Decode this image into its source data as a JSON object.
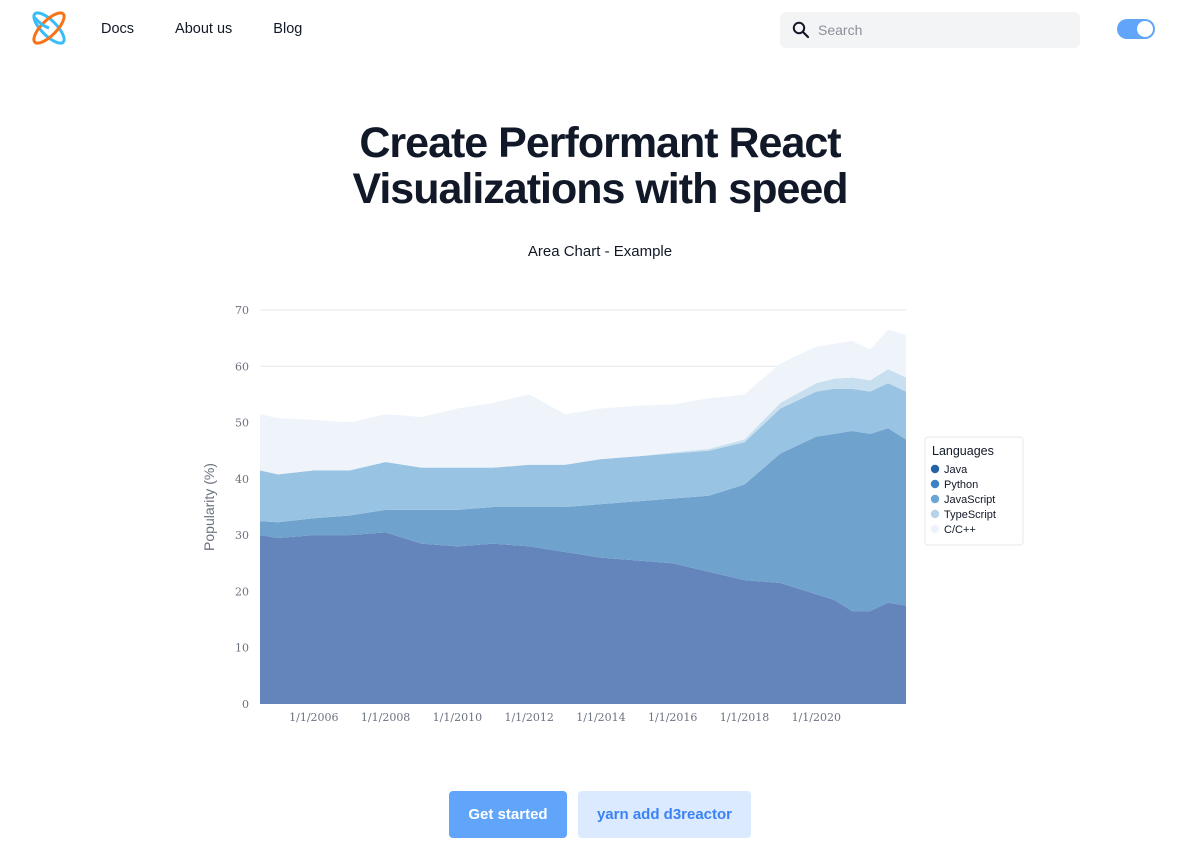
{
  "header": {
    "nav": [
      {
        "label": "Docs"
      },
      {
        "label": "About us"
      },
      {
        "label": "Blog"
      }
    ],
    "search": {
      "placeholder": "Search",
      "value": ""
    },
    "theme_toggle": {
      "on": true
    }
  },
  "hero": {
    "title_line1": "Create Performant React",
    "title_line2": "Visualizations with speed"
  },
  "chart_heading": "Area Chart - Example",
  "chart_data": {
    "type": "area",
    "stacked": true,
    "ylabel": "Popularity (%)",
    "xlabel": "",
    "ylim": [
      0,
      70
    ],
    "yticks": [
      0,
      10,
      20,
      30,
      40,
      50,
      60,
      70
    ],
    "xtick_labels": [
      "1/1/2006",
      "1/1/2008",
      "1/1/2010",
      "1/1/2012",
      "1/1/2014",
      "1/1/2016",
      "1/1/2018",
      "1/1/2020"
    ],
    "xtick_years": [
      2006,
      2008,
      2010,
      2012,
      2014,
      2016,
      2018,
      2020
    ],
    "x_years": [
      2004.5,
      2005,
      2006,
      2007,
      2008,
      2009,
      2010,
      2011,
      2012,
      2013,
      2014,
      2015,
      2016,
      2017,
      2018,
      2019,
      2020,
      2020.5,
      2021,
      2021.5,
      2022,
      2022.5
    ],
    "grid": true,
    "legend": {
      "title": "Languages",
      "position": "right"
    },
    "series": [
      {
        "name": "Java",
        "color": "#6485bb",
        "values": [
          30,
          29.5,
          30,
          30,
          30.5,
          28.5,
          28,
          28.5,
          28,
          27,
          26,
          25.5,
          25,
          23.5,
          22,
          21.5,
          19.5,
          18.5,
          16.5,
          16.5,
          18,
          17.5
        ]
      },
      {
        "name": "Python",
        "color": "#6fa3cd",
        "values": [
          2.5,
          2.8,
          3,
          3.5,
          4,
          6,
          6.5,
          6.5,
          7,
          8,
          9.5,
          10.5,
          11.5,
          13.5,
          17,
          23,
          28,
          29.5,
          32,
          31.5,
          31,
          29.5
        ]
      },
      {
        "name": "JavaScript",
        "color": "#99c3e2",
        "values": [
          9,
          8.5,
          8.5,
          8,
          8.5,
          7.5,
          7.5,
          7,
          7.5,
          7.5,
          8,
          8,
          8,
          8,
          7.5,
          8,
          8,
          8,
          7.5,
          7.5,
          8,
          8.5
        ]
      },
      {
        "name": "TypeScript",
        "color": "#c8dff0",
        "values": [
          0,
          0,
          0,
          0,
          0,
          0,
          0,
          0,
          0,
          0,
          0,
          0,
          0.2,
          0.3,
          0.5,
          1,
          1.5,
          1.8,
          2,
          2,
          2.5,
          2.5
        ]
      },
      {
        "name": "C/C++",
        "color": "#eff4fb",
        "values": [
          10,
          10,
          9,
          8.5,
          8.5,
          9,
          10.5,
          11.5,
          12.5,
          9,
          9,
          9,
          8.5,
          9,
          8,
          7,
          6.5,
          6.2,
          6.5,
          5.5,
          7,
          7.5
        ]
      }
    ]
  },
  "buttons": {
    "get_started": "Get started",
    "install": "yarn add d3reactor"
  },
  "colors": {
    "accent": "#60a5fa",
    "accent_light": "#dbeafe",
    "accent_text": "#3b82f6",
    "logo_blue": "#38bdf8",
    "logo_orange": "#f97316"
  }
}
